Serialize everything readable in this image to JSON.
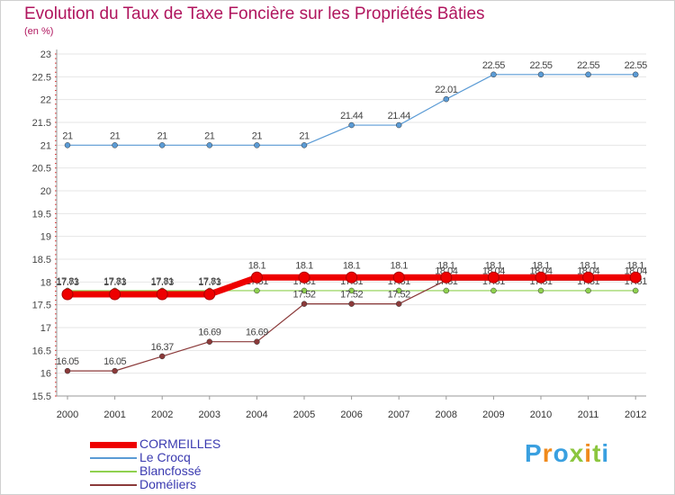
{
  "title": "Evolution du Taux de Taxe Foncière sur les Propriétés Bâties",
  "subtitle": "(en %)",
  "logo": "Proxiti",
  "colors": {
    "title": "#b0155e",
    "background": "#ffffff",
    "grid": "#e6e6e6",
    "legend_text": "#3a3ab0"
  },
  "chart_data": {
    "type": "line",
    "x": [
      "2000",
      "2001",
      "2002",
      "2003",
      "2004",
      "2005",
      "2006",
      "2007",
      "2008",
      "2009",
      "2010",
      "2011",
      "2012"
    ],
    "ylim": [
      15.5,
      23
    ],
    "yticks": [
      "15.5",
      "16",
      "16.5",
      "17",
      "17.5",
      "18",
      "18.5",
      "19",
      "19.5",
      "20",
      "20.5",
      "21",
      "21.5",
      "22",
      "22.5",
      "23"
    ],
    "grid": true,
    "legend_position": "bottom-left",
    "series": [
      {
        "name": "CORMEILLES",
        "color": "#ee0000",
        "values": [
          17.73,
          17.73,
          17.73,
          17.73,
          18.1,
          18.1,
          18.1,
          18.1,
          18.1,
          18.1,
          18.1,
          18.1,
          18.1
        ],
        "labels": [
          "17.73",
          "17.73",
          "17.73",
          "17.73",
          "18.1",
          "18.1",
          "18.1",
          "18.1",
          "18.1",
          "18.1",
          "18.1",
          "18.1",
          "18.1"
        ]
      },
      {
        "name": "Le Crocq",
        "color": "#5b9bd5",
        "values": [
          21,
          21,
          21,
          21,
          21,
          21,
          21.44,
          21.44,
          22.01,
          22.55,
          22.55,
          22.55,
          22.55
        ],
        "labels": [
          "21",
          "21",
          "21",
          "21",
          "21",
          "21",
          "21.44",
          "21.44",
          "22.01",
          "22.55",
          "22.55",
          "22.55",
          "22.55"
        ]
      },
      {
        "name": "Blancfossé",
        "color": "#8fd14f",
        "values": [
          17.81,
          17.81,
          17.81,
          17.81,
          17.81,
          17.81,
          17.81,
          17.81,
          17.81,
          17.81,
          17.81,
          17.81,
          17.81
        ],
        "labels": [
          "17.81",
          "17.81",
          "17.81",
          "17.81",
          "17.81",
          "17.81",
          "17.81",
          "17.81",
          "17.81",
          "17.81",
          "17.81",
          "17.81",
          "17.81"
        ]
      },
      {
        "name": "Doméliers",
        "color": "#8b3a3a",
        "values": [
          16.05,
          16.05,
          16.37,
          16.69,
          16.69,
          17.52,
          17.52,
          17.52,
          18.04,
          18.04,
          18.04,
          18.04,
          18.04
        ],
        "labels": [
          "16.05",
          "16.05",
          "16.37",
          "16.69",
          "16.69",
          "17.52",
          "17.52",
          "17.52",
          "18.04",
          "18.04",
          "18.04",
          "18.04",
          "18.04"
        ]
      }
    ]
  }
}
